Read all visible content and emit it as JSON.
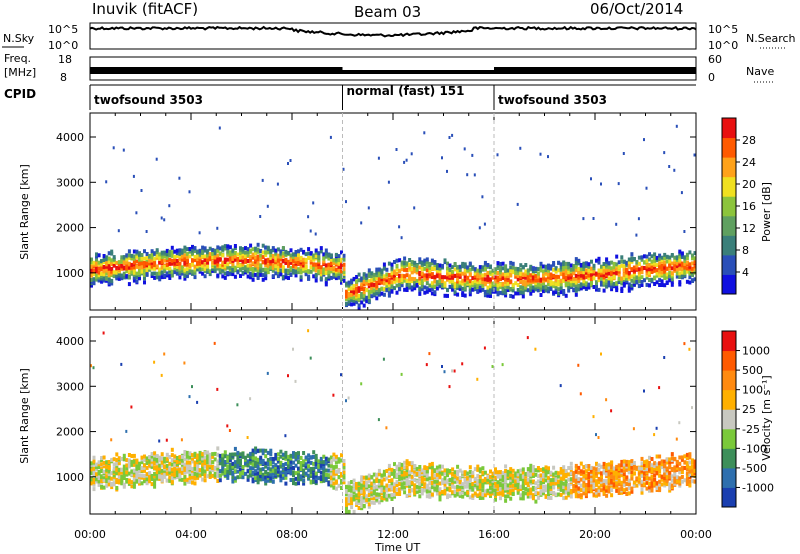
{
  "header": {
    "station": "Inuvik (fitACF)",
    "beam": "Beam 03",
    "date": "06/Oct/2014"
  },
  "panels_left": {
    "nsky_label": "N.Sky",
    "nsky_ticks": [
      "10^5",
      "10^0"
    ],
    "freq_label_1": "Freq.",
    "freq_label_2": "[MHz]",
    "freq_ticks": [
      "18",
      "8"
    ],
    "cpid_label": "CPID"
  },
  "panels_right": {
    "nsearch_label": "N.Search",
    "nsearch_ticks": [
      "10^5",
      "10^0"
    ],
    "nave_label": "Nave",
    "nave_ticks": [
      "60",
      "0"
    ]
  },
  "cpid_segments": [
    {
      "start_h": 0,
      "end_h": 10,
      "label": "twofsound 3503"
    },
    {
      "start_h": 10,
      "end_h": 16,
      "label": "normal (fast) 151"
    },
    {
      "start_h": 16,
      "end_h": 24,
      "label": "twofsound 3503"
    }
  ],
  "chart_data": [
    {
      "type": "heatmap",
      "title": "Power",
      "xlabel": "Time UT",
      "ylabel": "Slant Range [km]",
      "x_ticks": [
        "00:00",
        "04:00",
        "08:00",
        "12:00",
        "16:00",
        "20:00",
        "00:00"
      ],
      "xlim_hours": [
        0,
        24
      ],
      "y_ticks": [
        "4000",
        "3000",
        "2000",
        "1000"
      ],
      "ylim": [
        180,
        4530
      ],
      "colorbar": {
        "label": "Power [dB]",
        "ticks": [
          "28",
          "24",
          "20",
          "16",
          "12",
          "8",
          "4"
        ],
        "range": [
          0,
          32
        ],
        "colors": [
          "#1010e0",
          "#2a4fb8",
          "#3a7f7a",
          "#5fa060",
          "#8cc43c",
          "#f0e020",
          "#ffa21a",
          "#ff5a00",
          "#e81010"
        ]
      }
    },
    {
      "type": "heatmap",
      "title": "Velocity",
      "xlabel": "Time UT",
      "ylabel": "Slant Range [km]",
      "x_ticks": [
        "00:00",
        "04:00",
        "08:00",
        "12:00",
        "16:00",
        "20:00",
        "00:00"
      ],
      "xlim_hours": [
        0,
        24
      ],
      "y_ticks": [
        "4000",
        "3000",
        "2000",
        "1000"
      ],
      "ylim": [
        180,
        4530
      ],
      "colorbar": {
        "label": "Velocity [m s⁻¹]",
        "ticks": [
          "1000",
          "500",
          "100",
          "25",
          "-25",
          "-100",
          "-500",
          "-1000"
        ],
        "colors": [
          "#1a3fb0",
          "#2e6fae",
          "#3d8f5a",
          "#7ac93a",
          "#c8c8c0",
          "#ffb000",
          "#ff8a10",
          "#ff5a00",
          "#e81010"
        ]
      }
    }
  ],
  "time_axis_label": "Time UT"
}
